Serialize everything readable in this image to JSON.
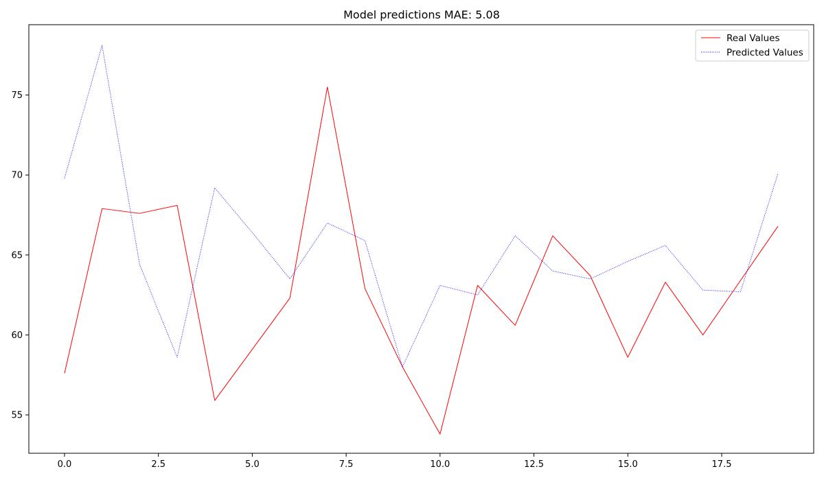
{
  "chart_data": {
    "type": "line",
    "title": "Model predictions MAE: 5.08",
    "xlabel": "",
    "ylabel": "",
    "xlim": [
      -0.95,
      19.95
    ],
    "ylim": [
      52.6,
      79.4
    ],
    "xticks": [
      0.0,
      2.5,
      5.0,
      7.5,
      10.0,
      12.5,
      15.0,
      17.5
    ],
    "xtick_labels": [
      "0.0",
      "2.5",
      "5.0",
      "7.5",
      "10.0",
      "12.5",
      "15.0",
      "17.5"
    ],
    "yticks": [
      55,
      60,
      65,
      70,
      75
    ],
    "ytick_labels": [
      "55",
      "60",
      "65",
      "70",
      "75"
    ],
    "grid": false,
    "legend_position": "top-right",
    "x": [
      0,
      1,
      2,
      3,
      4,
      5,
      6,
      7,
      8,
      9,
      10,
      11,
      12,
      13,
      14,
      15,
      16,
      17,
      18,
      19
    ],
    "series": [
      {
        "name": "Real Values",
        "color": "#ff0000",
        "style": "solid",
        "values": [
          57.6,
          67.9,
          67.6,
          68.1,
          55.9,
          59.1,
          62.3,
          75.5,
          62.9,
          58.0,
          53.8,
          63.1,
          60.6,
          66.2,
          63.7,
          58.6,
          63.3,
          60.0,
          63.4,
          66.8
        ]
      },
      {
        "name": "Predicted Values",
        "color": "#0000ff",
        "style": "dotted",
        "values": [
          69.8,
          78.1,
          64.4,
          58.6,
          69.2,
          66.4,
          63.5,
          67.0,
          65.9,
          58.0,
          63.1,
          62.5,
          66.2,
          64.0,
          63.5,
          64.6,
          65.6,
          62.8,
          62.7,
          70.1
        ]
      }
    ]
  }
}
